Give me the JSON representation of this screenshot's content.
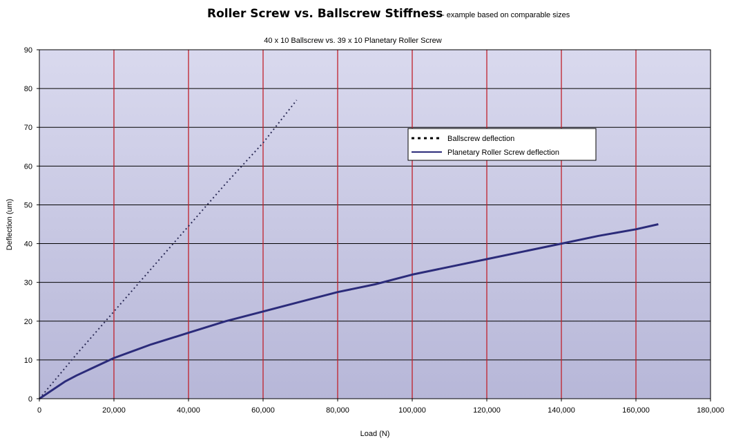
{
  "chart_data": {
    "type": "line",
    "title": "Roller Screw vs. Ballscrew Stiffness",
    "title_note": "- example based on comparable sizes",
    "subtitle": "40 x 10 Ballscrew   vs.   39 x 10 Planetary Roller Screw",
    "xlabel": "Load (N)",
    "ylabel": "Deflection (um)",
    "xlim": [
      0,
      180000
    ],
    "ylim": [
      0,
      90
    ],
    "x_ticks": [
      0,
      20000,
      40000,
      60000,
      80000,
      100000,
      120000,
      140000,
      160000,
      180000
    ],
    "x_tick_labels": [
      "0",
      "20,000",
      "40,000",
      "60,000",
      "80,000",
      "100,000",
      "120,000",
      "140,000",
      "160,000",
      "180,000"
    ],
    "y_ticks": [
      0,
      10,
      20,
      30,
      40,
      50,
      60,
      70,
      80,
      90
    ],
    "y_tick_labels": [
      "0",
      "10",
      "20",
      "30",
      "40",
      "50",
      "60",
      "70",
      "80",
      "90"
    ],
    "grid": true,
    "legend_position": "upper-right-center",
    "series": [
      {
        "name": "Ballscrew deflection",
        "style": "dotted",
        "color": "#2a2a55",
        "x": [
          0,
          10000,
          20000,
          30000,
          40000,
          50000,
          60000,
          69000
        ],
        "y": [
          0,
          11.5,
          22.5,
          33.5,
          44.5,
          55.5,
          66,
          77
        ]
      },
      {
        "name": "Planetary Roller Screw deflection",
        "style": "solid",
        "color": "#2b2b7a",
        "x": [
          0,
          7000,
          10000,
          20000,
          30000,
          40000,
          50000,
          60000,
          70000,
          80000,
          90000,
          100000,
          110000,
          120000,
          130000,
          140000,
          150000,
          160000,
          166000
        ],
        "y": [
          0,
          4.5,
          6,
          10.5,
          14,
          17,
          20,
          22.5,
          25,
          27.5,
          29.5,
          32,
          34,
          36,
          38,
          40,
          42,
          43.7,
          45
        ]
      }
    ]
  },
  "colors": {
    "plot_bg_top": "#d9d9ee",
    "plot_bg_bottom": "#b7b7d8",
    "h_grid": "#000000",
    "v_grid": "#c0202a",
    "axis": "#000000"
  }
}
